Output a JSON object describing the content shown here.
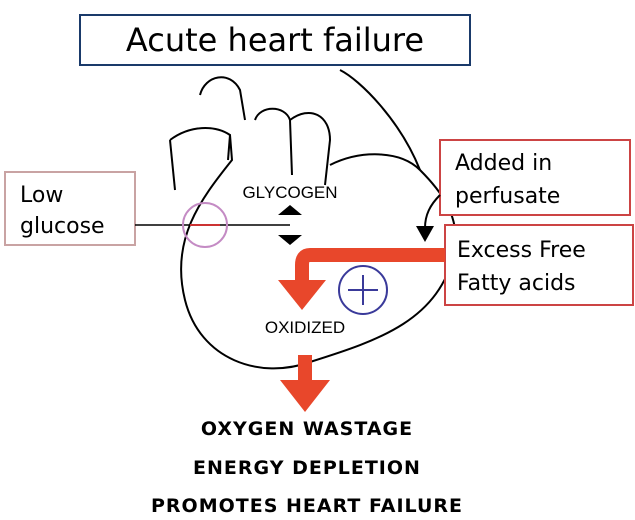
{
  "title": "Acute heart failure",
  "low_glucose": [
    "Low",
    "glucose"
  ],
  "added": [
    "Added in",
    "perfusate"
  ],
  "excess": [
    "Excess Free",
    "Fatty acids"
  ],
  "heart_labels": {
    "glycogen": "GLYCOGEN",
    "oxidized": "OXIDIZED"
  },
  "outcomes": [
    "OXYGEN WASTAGE",
    "ENERGY DEPLETION",
    "PROMOTES HEART FAILURE"
  ]
}
